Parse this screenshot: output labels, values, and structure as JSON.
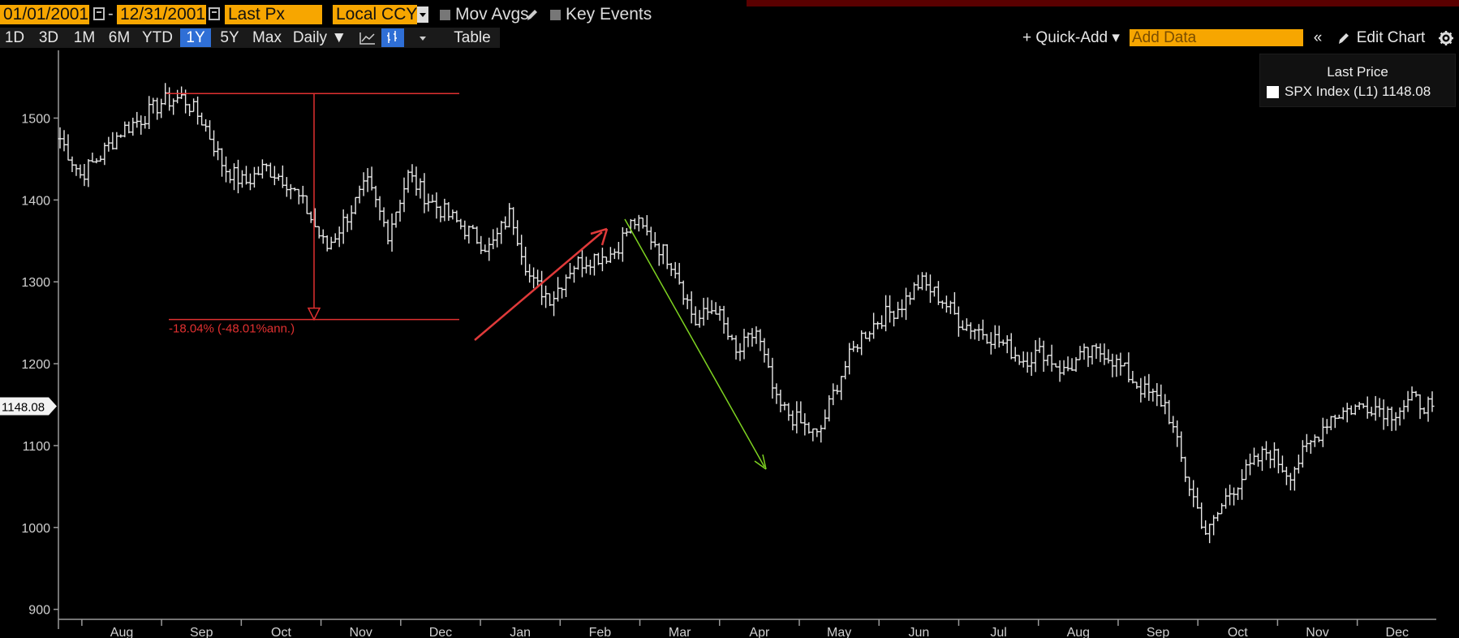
{
  "toolbar": {
    "start_date": "01/01/2001",
    "end_date": "12/31/2001",
    "field": "Last Px",
    "currency": "Local CCY",
    "mov_avgs": "Mov Avgs",
    "key_events": "Key Events"
  },
  "nav": {
    "ranges": [
      "1D",
      "3D",
      "1M",
      "6M",
      "YTD",
      "1Y",
      "5Y",
      "Max"
    ],
    "selected_range": "1Y",
    "frequency": "Daily ▼",
    "table": "Table",
    "quick_add": "+ Quick-Add ▾",
    "add_data_placeholder": "Add Data",
    "collapse": "«",
    "edit_chart": "Edit Chart"
  },
  "legend": {
    "title": "Last Price",
    "entry": "SPX Index  (L1) 1148.08",
    "swatch_color": "#ffffff"
  },
  "annotation": {
    "label": "-18.04% (-48.01%ann.)",
    "color": "#e03030",
    "top_level": 1530,
    "bottom_level": 1254
  },
  "last_value_tag": "1148.08",
  "arrows": [
    {
      "name": "up-trend-arrow",
      "color": "#e03a3a"
    },
    {
      "name": "down-trend-arrow",
      "color": "#7ed321"
    }
  ],
  "chart_data": {
    "type": "line",
    "series_ticker": "SPX Index",
    "line_color": "#ffffff",
    "y_ticks": [
      900,
      1000,
      1100,
      1200,
      1300,
      1400,
      1500
    ],
    "ylim": [
      890,
      1560
    ],
    "x_month_labels": [
      "Aug",
      "Sep",
      "Oct",
      "Nov",
      "Dec",
      "Jan",
      "Feb",
      "Mar",
      "Apr",
      "May",
      "Jun",
      "Jul",
      "Aug",
      "Sep",
      "Oct",
      "Nov",
      "Dec"
    ],
    "anchors_close": [
      1475,
      1430,
      1455,
      1485,
      1500,
      1520,
      1525,
      1495,
      1440,
      1420,
      1440,
      1425,
      1390,
      1340,
      1380,
      1420,
      1360,
      1430,
      1400,
      1380,
      1360,
      1340,
      1385,
      1300,
      1280,
      1320,
      1330,
      1335,
      1375,
      1350,
      1320,
      1250,
      1270,
      1210,
      1240,
      1150,
      1130,
      1110,
      1180,
      1230,
      1255,
      1270,
      1300,
      1280,
      1250,
      1240,
      1225,
      1205,
      1215,
      1190,
      1210,
      1215,
      1190,
      1165,
      1150,
      1060,
      990,
      1040,
      1070,
      1095,
      1065,
      1100,
      1135,
      1145,
      1150,
      1140,
      1155,
      1148.08
    ]
  }
}
